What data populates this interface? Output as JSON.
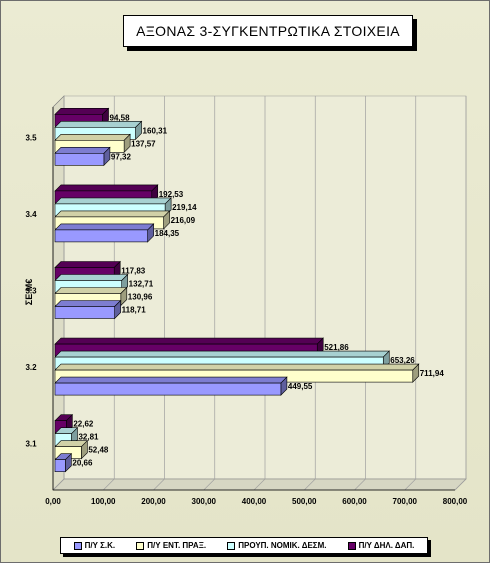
{
  "chart_data": {
    "type": "bar",
    "orientation": "horizontal",
    "title": "ΑΞΟΝΑΣ 3-ΣΥΓΚΕΝΤΡΩΤΙΚΑ ΣΤΟΙΧΕΙΑ",
    "ylabel": "ΣΕ Μ€",
    "xlabel": "",
    "xlim": [
      0,
      800
    ],
    "x_ticks": [
      "0,00",
      "100,00",
      "200,00",
      "300,00",
      "400,00",
      "500,00",
      "600,00",
      "700,00",
      "800,00"
    ],
    "categories": [
      "3.1",
      "3.2",
      "3.3",
      "3.4",
      "3.5"
    ],
    "series": [
      {
        "name": "Π/Υ Σ.Κ.",
        "color": "#9999ff",
        "values": [
          20.66,
          449.55,
          118.71,
          184.35,
          97.32
        ],
        "labels": [
          "20,66",
          "449,55",
          "118,71",
          "184,35",
          "97,32"
        ]
      },
      {
        "name": "Π/Υ ΕΝΤ. ΠΡΑΞ.",
        "color": "#ffffcc",
        "values": [
          52.48,
          711.94,
          130.96,
          216.09,
          137.57
        ],
        "labels": [
          "52,48",
          "711,94",
          "130,96",
          "216,09",
          "137,57"
        ]
      },
      {
        "name": "ΠΡΟΥΠ. ΝΟΜΙΚ. ΔΕΣΜ.",
        "color": "#ccffff",
        "values": [
          32.81,
          653.26,
          132.71,
          219.14,
          160.31
        ],
        "labels": [
          "32,81",
          "653,26",
          "132,71",
          "219,14",
          "160,31"
        ]
      },
      {
        "name": "Π/Υ ΔΗΛ. ΔΑΠ.",
        "color": "#660066",
        "values": [
          22.62,
          521.86,
          117.83,
          192.53,
          94.58
        ],
        "labels": [
          "22,62",
          "521,86",
          "117,83",
          "192,53",
          "94,58"
        ]
      }
    ],
    "grid": true,
    "legend_position": "bottom"
  }
}
